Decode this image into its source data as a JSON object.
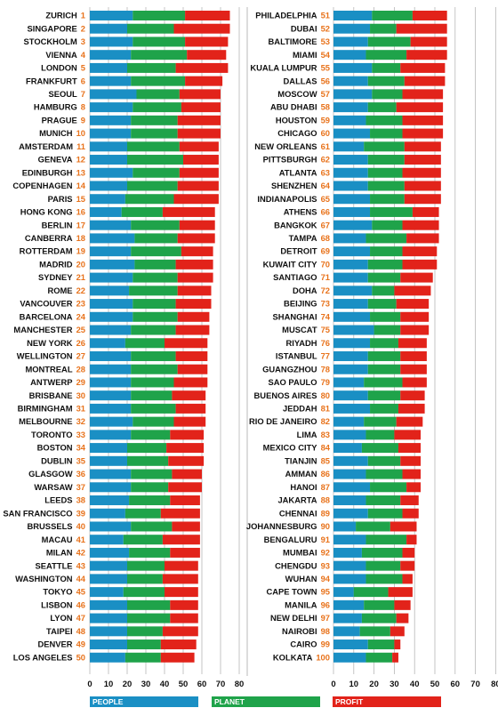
{
  "colors": {
    "people": "#1a8fc4",
    "planet": "#1fa34a",
    "profit": "#e2231a",
    "rank": "#e8731c",
    "grid": "#b8b8b8"
  },
  "chart_data": {
    "type": "bar",
    "stacked": true,
    "orientation": "horizontal",
    "grid": true,
    "xlim": [
      0,
      80
    ],
    "xticks": [
      "0",
      "10",
      "20",
      "30",
      "40",
      "50",
      "60",
      "70",
      "80"
    ],
    "legend": {
      "position": "bottom",
      "entries": [
        "PEOPLE",
        "PLANET",
        "PROFIT"
      ]
    },
    "panels": [
      {
        "rows": [
          {
            "city": "ZURICH",
            "rank": "1",
            "people": 23,
            "planet": 28,
            "profit": 24
          },
          {
            "city": "SINGAPORE",
            "rank": "2",
            "people": 20,
            "planet": 25,
            "profit": 30
          },
          {
            "city": "STOCKHOLM",
            "rank": "3",
            "people": 23,
            "planet": 28,
            "profit": 23
          },
          {
            "city": "VIENNA",
            "rank": "4",
            "people": 22,
            "planet": 30,
            "profit": 21
          },
          {
            "city": "LONDON",
            "rank": "5",
            "people": 20,
            "planet": 26,
            "profit": 28
          },
          {
            "city": "FRANKFURT",
            "rank": "6",
            "people": 22,
            "planet": 29,
            "profit": 20
          },
          {
            "city": "SEOUL",
            "rank": "7",
            "people": 25,
            "planet": 23,
            "profit": 22
          },
          {
            "city": "HAMBURG",
            "rank": "8",
            "people": 23,
            "planet": 26,
            "profit": 21
          },
          {
            "city": "PRAGUE",
            "rank": "9",
            "people": 22,
            "planet": 25,
            "profit": 23
          },
          {
            "city": "MUNICH",
            "rank": "10",
            "people": 22,
            "planet": 25,
            "profit": 23
          },
          {
            "city": "AMSTERDAM",
            "rank": "11",
            "people": 20,
            "planet": 28,
            "profit": 21
          },
          {
            "city": "GENEVA",
            "rank": "12",
            "people": 20,
            "planet": 30,
            "profit": 19
          },
          {
            "city": "EDINBURGH",
            "rank": "13",
            "people": 23,
            "planet": 25,
            "profit": 21
          },
          {
            "city": "COPENHAGEN",
            "rank": "14",
            "people": 20,
            "planet": 27,
            "profit": 22
          },
          {
            "city": "PARIS",
            "rank": "15",
            "people": 19,
            "planet": 26,
            "profit": 24
          },
          {
            "city": "HONG KONG",
            "rank": "16",
            "people": 17,
            "planet": 22,
            "profit": 28
          },
          {
            "city": "BERLIN",
            "rank": "17",
            "people": 22,
            "planet": 26,
            "profit": 19
          },
          {
            "city": "CANBERRA",
            "rank": "18",
            "people": 24,
            "planet": 23,
            "profit": 20
          },
          {
            "city": "ROTTERDAM",
            "rank": "19",
            "people": 22,
            "planet": 27,
            "profit": 17
          },
          {
            "city": "MADRID",
            "rank": "20",
            "people": 24,
            "planet": 22,
            "profit": 20
          },
          {
            "city": "SYDNEY",
            "rank": "21",
            "people": 23,
            "planet": 24,
            "profit": 19
          },
          {
            "city": "ROME",
            "rank": "22",
            "people": 21,
            "planet": 26,
            "profit": 18
          },
          {
            "city": "VANCOUVER",
            "rank": "23",
            "people": 23,
            "planet": 23,
            "profit": 19
          },
          {
            "city": "BARCELONA",
            "rank": "24",
            "people": 23,
            "planet": 24,
            "profit": 17
          },
          {
            "city": "MANCHESTER",
            "rank": "25",
            "people": 22,
            "planet": 24,
            "profit": 18
          },
          {
            "city": "NEW YORK",
            "rank": "26",
            "people": 19,
            "planet": 21,
            "profit": 23
          },
          {
            "city": "WELLINGTON",
            "rank": "27",
            "people": 22,
            "planet": 24,
            "profit": 17
          },
          {
            "city": "MONTREAL",
            "rank": "28",
            "people": 22,
            "planet": 25,
            "profit": 16
          },
          {
            "city": "ANTWERP",
            "rank": "29",
            "people": 22,
            "planet": 23,
            "profit": 18
          },
          {
            "city": "BRISBANE",
            "rank": "30",
            "people": 22,
            "planet": 22,
            "profit": 18
          },
          {
            "city": "BIRMINGHAM",
            "rank": "31",
            "people": 22,
            "planet": 24,
            "profit": 16
          },
          {
            "city": "MELBOURNE",
            "rank": "32",
            "people": 23,
            "planet": 22,
            "profit": 17
          },
          {
            "city": "TORONTO",
            "rank": "33",
            "people": 22,
            "planet": 21,
            "profit": 18
          },
          {
            "city": "BOSTON",
            "rank": "34",
            "people": 20,
            "planet": 21,
            "profit": 20
          },
          {
            "city": "DUBLIN",
            "rank": "35",
            "people": 20,
            "planet": 22,
            "profit": 19
          },
          {
            "city": "GLASGOW",
            "rank": "36",
            "people": 22,
            "planet": 22,
            "profit": 16
          },
          {
            "city": "WARSAW",
            "rank": "37",
            "people": 22,
            "planet": 20,
            "profit": 18
          },
          {
            "city": "LEEDS",
            "rank": "38",
            "people": 21,
            "planet": 22,
            "profit": 16
          },
          {
            "city": "SAN FRANCISCO",
            "rank": "39",
            "people": 19,
            "planet": 19,
            "profit": 21
          },
          {
            "city": "BRUSSELS",
            "rank": "40",
            "people": 22,
            "planet": 22,
            "profit": 15
          },
          {
            "city": "MACAU",
            "rank": "41",
            "people": 18,
            "planet": 21,
            "profit": 20
          },
          {
            "city": "MILAN",
            "rank": "42",
            "people": 21,
            "planet": 22,
            "profit": 16
          },
          {
            "city": "SEATTLE",
            "rank": "43",
            "people": 20,
            "planet": 20,
            "profit": 18
          },
          {
            "city": "WASHINGTON",
            "rank": "44",
            "people": 20,
            "planet": 19,
            "profit": 19
          },
          {
            "city": "TOKYO",
            "rank": "45",
            "people": 18,
            "planet": 22,
            "profit": 18
          },
          {
            "city": "LISBON",
            "rank": "46",
            "people": 20,
            "planet": 23,
            "profit": 15
          },
          {
            "city": "LYON",
            "rank": "47",
            "people": 20,
            "planet": 23,
            "profit": 15
          },
          {
            "city": "TAIPEI",
            "rank": "48",
            "people": 20,
            "planet": 19,
            "profit": 19
          },
          {
            "city": "DENVER",
            "rank": "49",
            "people": 20,
            "planet": 18,
            "profit": 19
          },
          {
            "city": "LOS ANGELES",
            "rank": "50",
            "people": 19,
            "planet": 19,
            "profit": 18
          }
        ]
      },
      {
        "rows": [
          {
            "city": "PHILADELPHIA",
            "rank": "51",
            "people": 19,
            "planet": 20,
            "profit": 17
          },
          {
            "city": "DUBAI",
            "rank": "52",
            "people": 18,
            "planet": 13,
            "profit": 25
          },
          {
            "city": "BALTIMORE",
            "rank": "53",
            "people": 17,
            "planet": 21,
            "profit": 18
          },
          {
            "city": "MIAMI",
            "rank": "54",
            "people": 16,
            "planet": 20,
            "profit": 20
          },
          {
            "city": "KUALA LUMPUR",
            "rank": "55",
            "people": 19,
            "planet": 14,
            "profit": 22
          },
          {
            "city": "DALLAS",
            "rank": "56",
            "people": 17,
            "planet": 18,
            "profit": 20
          },
          {
            "city": "MOSCOW",
            "rank": "57",
            "people": 19,
            "planet": 15,
            "profit": 20
          },
          {
            "city": "ABU DHABI",
            "rank": "58",
            "people": 17,
            "planet": 14,
            "profit": 23
          },
          {
            "city": "HOUSTON",
            "rank": "59",
            "people": 16,
            "planet": 18,
            "profit": 20
          },
          {
            "city": "CHICAGO",
            "rank": "60",
            "people": 18,
            "planet": 16,
            "profit": 20
          },
          {
            "city": "NEW ORLEANS",
            "rank": "61",
            "people": 15,
            "planet": 20,
            "profit": 18
          },
          {
            "city": "PITTSBURGH",
            "rank": "62",
            "people": 17,
            "planet": 18,
            "profit": 18
          },
          {
            "city": "ATLANTA",
            "rank": "63",
            "people": 17,
            "planet": 17,
            "profit": 19
          },
          {
            "city": "SHENZHEN",
            "rank": "64",
            "people": 17,
            "planet": 18,
            "profit": 18
          },
          {
            "city": "INDIANAPOLIS",
            "rank": "65",
            "people": 18,
            "planet": 17,
            "profit": 18
          },
          {
            "city": "ATHENS",
            "rank": "66",
            "people": 18,
            "planet": 21,
            "profit": 13
          },
          {
            "city": "BANGKOK",
            "rank": "67",
            "people": 19,
            "planet": 15,
            "profit": 18
          },
          {
            "city": "TAMPA",
            "rank": "68",
            "people": 16,
            "planet": 20,
            "profit": 16
          },
          {
            "city": "DETROIT",
            "rank": "69",
            "people": 18,
            "planet": 16,
            "profit": 17
          },
          {
            "city": "KUWAIT CITY",
            "rank": "70",
            "people": 17,
            "planet": 17,
            "profit": 17
          },
          {
            "city": "SANTIAGO",
            "rank": "71",
            "people": 17,
            "planet": 16,
            "profit": 16
          },
          {
            "city": "DOHA",
            "rank": "72",
            "people": 19,
            "planet": 11,
            "profit": 18
          },
          {
            "city": "BEIJING",
            "rank": "73",
            "people": 17,
            "planet": 14,
            "profit": 16
          },
          {
            "city": "SHANGHAI",
            "rank": "74",
            "people": 18,
            "planet": 15,
            "profit": 14
          },
          {
            "city": "MUSCAT",
            "rank": "75",
            "people": 20,
            "planet": 13,
            "profit": 14
          },
          {
            "city": "RIYADH",
            "rank": "76",
            "people": 18,
            "planet": 14,
            "profit": 14
          },
          {
            "city": "ISTANBUL",
            "rank": "77",
            "people": 17,
            "planet": 16,
            "profit": 13
          },
          {
            "city": "GUANGZHOU",
            "rank": "78",
            "people": 17,
            "planet": 16,
            "profit": 13
          },
          {
            "city": "SAO PAULO",
            "rank": "79",
            "people": 15,
            "planet": 19,
            "profit": 12
          },
          {
            "city": "BUENOS AIRES",
            "rank": "80",
            "people": 17,
            "planet": 16,
            "profit": 12
          },
          {
            "city": "JEDDAH",
            "rank": "81",
            "people": 18,
            "planet": 14,
            "profit": 13
          },
          {
            "city": "RIO DE JANEIRO",
            "rank": "82",
            "people": 15,
            "planet": 16,
            "profit": 13
          },
          {
            "city": "LIMA",
            "rank": "83",
            "people": 16,
            "planet": 14,
            "profit": 13
          },
          {
            "city": "MEXICO CITY",
            "rank": "84",
            "people": 14,
            "planet": 18,
            "profit": 11
          },
          {
            "city": "TIANJIN",
            "rank": "85",
            "people": 17,
            "planet": 16,
            "profit": 10
          },
          {
            "city": "AMMAN",
            "rank": "86",
            "people": 16,
            "planet": 18,
            "profit": 9
          },
          {
            "city": "HANOI",
            "rank": "87",
            "people": 18,
            "planet": 18,
            "profit": 7
          },
          {
            "city": "JAKARTA",
            "rank": "88",
            "people": 16,
            "planet": 17,
            "profit": 9
          },
          {
            "city": "CHENNAI",
            "rank": "89",
            "people": 17,
            "planet": 17,
            "profit": 8
          },
          {
            "city": "JOHANNESBURG",
            "rank": "90",
            "people": 11,
            "planet": 17,
            "profit": 13
          },
          {
            "city": "BENGALURU",
            "rank": "91",
            "people": 16,
            "planet": 20,
            "profit": 5
          },
          {
            "city": "MUMBAI",
            "rank": "92",
            "people": 14,
            "planet": 20,
            "profit": 6
          },
          {
            "city": "CHENGDU",
            "rank": "93",
            "people": 16,
            "planet": 17,
            "profit": 7
          },
          {
            "city": "WUHAN",
            "rank": "94",
            "people": 16,
            "planet": 18,
            "profit": 5
          },
          {
            "city": "CAPE TOWN",
            "rank": "95",
            "people": 10,
            "planet": 17,
            "profit": 12
          },
          {
            "city": "MANILA",
            "rank": "96",
            "people": 15,
            "planet": 15,
            "profit": 8
          },
          {
            "city": "NEW DELHI",
            "rank": "97",
            "people": 14,
            "planet": 17,
            "profit": 6
          },
          {
            "city": "NAIROBI",
            "rank": "98",
            "people": 13,
            "planet": 15,
            "profit": 7
          },
          {
            "city": "CAIRO",
            "rank": "99",
            "people": 17,
            "planet": 13,
            "profit": 3
          },
          {
            "city": "KOLKATA",
            "rank": "100",
            "people": 16,
            "planet": 13,
            "profit": 3
          }
        ]
      }
    ]
  }
}
